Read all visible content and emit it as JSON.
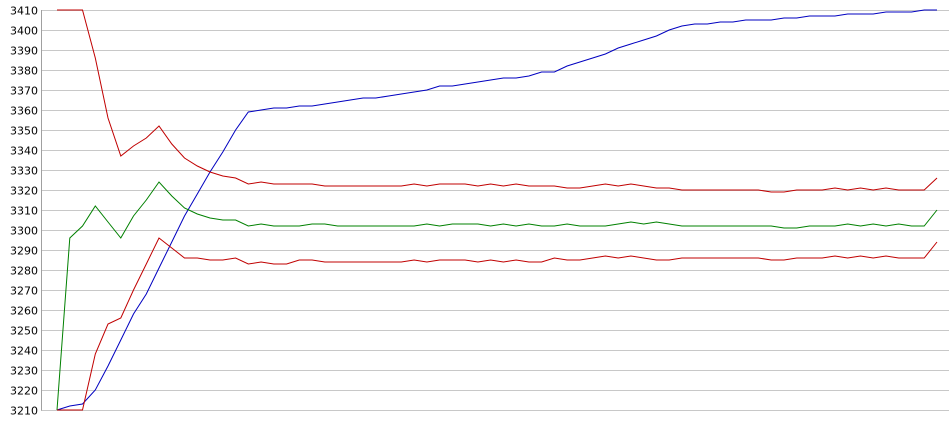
{
  "chart_data": {
    "type": "line",
    "title": "",
    "xlabel": "",
    "ylabel": "",
    "ylim": [
      3210,
      3410
    ],
    "yticks": [
      3210,
      3220,
      3230,
      3240,
      3250,
      3260,
      3270,
      3280,
      3290,
      3300,
      3310,
      3320,
      3330,
      3340,
      3350,
      3360,
      3370,
      3380,
      3390,
      3400,
      3410
    ],
    "grid": true,
    "x": [
      0,
      1,
      2,
      3,
      4,
      5,
      6,
      7,
      8,
      9,
      10,
      11,
      12,
      13,
      14,
      15,
      16,
      17,
      18,
      19,
      20,
      21,
      22,
      23,
      24,
      25,
      26,
      27,
      28,
      29,
      30,
      31,
      32,
      33,
      34,
      35,
      36,
      37,
      38,
      39,
      40,
      41,
      42,
      43,
      44,
      45,
      46,
      47,
      48,
      49,
      50,
      51,
      52,
      53,
      54,
      55,
      56,
      57,
      58,
      59,
      60,
      61,
      62,
      63,
      64,
      65,
      66,
      67,
      68,
      69
    ],
    "xlim": [
      0,
      69
    ],
    "series": [
      {
        "color": "#0000c0",
        "values": [
          3210,
          3212,
          3213,
          3220,
          3232,
          3245,
          3258,
          3268,
          3281,
          3294,
          3307,
          3318,
          3329,
          3339,
          3350,
          3359,
          3360,
          3361,
          3361,
          3362,
          3362,
          3363,
          3364,
          3365,
          3366,
          3366,
          3367,
          3368,
          3369,
          3370,
          3372,
          3372,
          3373,
          3374,
          3375,
          3376,
          3376,
          3377,
          3379,
          3379,
          3382,
          3384,
          3386,
          3388,
          3391,
          3393,
          3395,
          3397,
          3400,
          3402,
          3403,
          3403,
          3404,
          3404,
          3405,
          3405,
          3405,
          3406,
          3406,
          3407,
          3407,
          3407,
          3408,
          3408,
          3408,
          3409,
          3409,
          3409,
          3410,
          3410
        ]
      },
      {
        "color": "#c00000",
        "values": [
          3410,
          3410,
          3410,
          3386,
          3356,
          3337,
          3342,
          3346,
          3352,
          3343,
          3336,
          3332,
          3329,
          3327,
          3326,
          3323,
          3324,
          3323,
          3323,
          3323,
          3323,
          3322,
          3322,
          3322,
          3322,
          3322,
          3322,
          3322,
          3323,
          3322,
          3323,
          3323,
          3323,
          3322,
          3323,
          3322,
          3323,
          3322,
          3322,
          3322,
          3321,
          3321,
          3322,
          3323,
          3322,
          3323,
          3322,
          3321,
          3321,
          3320,
          3320,
          3320,
          3320,
          3320,
          3320,
          3320,
          3319,
          3319,
          3320,
          3320,
          3320,
          3321,
          3320,
          3321,
          3320,
          3321,
          3320,
          3320,
          3320,
          3326
        ]
      },
      {
        "color": "#008000",
        "values": [
          3210,
          3296,
          3302,
          3312,
          3304,
          3296,
          3307,
          3315,
          3324,
          3317,
          3311,
          3308,
          3306,
          3305,
          3305,
          3302,
          3303,
          3302,
          3302,
          3302,
          3303,
          3303,
          3302,
          3302,
          3302,
          3302,
          3302,
          3302,
          3302,
          3303,
          3302,
          3303,
          3303,
          3303,
          3302,
          3303,
          3302,
          3303,
          3302,
          3302,
          3303,
          3302,
          3302,
          3302,
          3303,
          3304,
          3303,
          3304,
          3303,
          3302,
          3302,
          3302,
          3302,
          3302,
          3302,
          3302,
          3302,
          3301,
          3301,
          3302,
          3302,
          3302,
          3303,
          3302,
          3303,
          3302,
          3303,
          3302,
          3302,
          3310
        ]
      },
      {
        "color": "#c00000",
        "values": [
          3210,
          3210,
          3210,
          3238,
          3253,
          3256,
          3270,
          3283,
          3296,
          3291,
          3286,
          3286,
          3285,
          3285,
          3286,
          3283,
          3284,
          3283,
          3283,
          3285,
          3285,
          3284,
          3284,
          3284,
          3284,
          3284,
          3284,
          3284,
          3285,
          3284,
          3285,
          3285,
          3285,
          3284,
          3285,
          3284,
          3285,
          3284,
          3284,
          3286,
          3285,
          3285,
          3286,
          3287,
          3286,
          3287,
          3286,
          3285,
          3285,
          3286,
          3286,
          3286,
          3286,
          3286,
          3286,
          3286,
          3285,
          3285,
          3286,
          3286,
          3286,
          3287,
          3286,
          3287,
          3286,
          3287,
          3286,
          3286,
          3286,
          3294
        ]
      }
    ]
  }
}
